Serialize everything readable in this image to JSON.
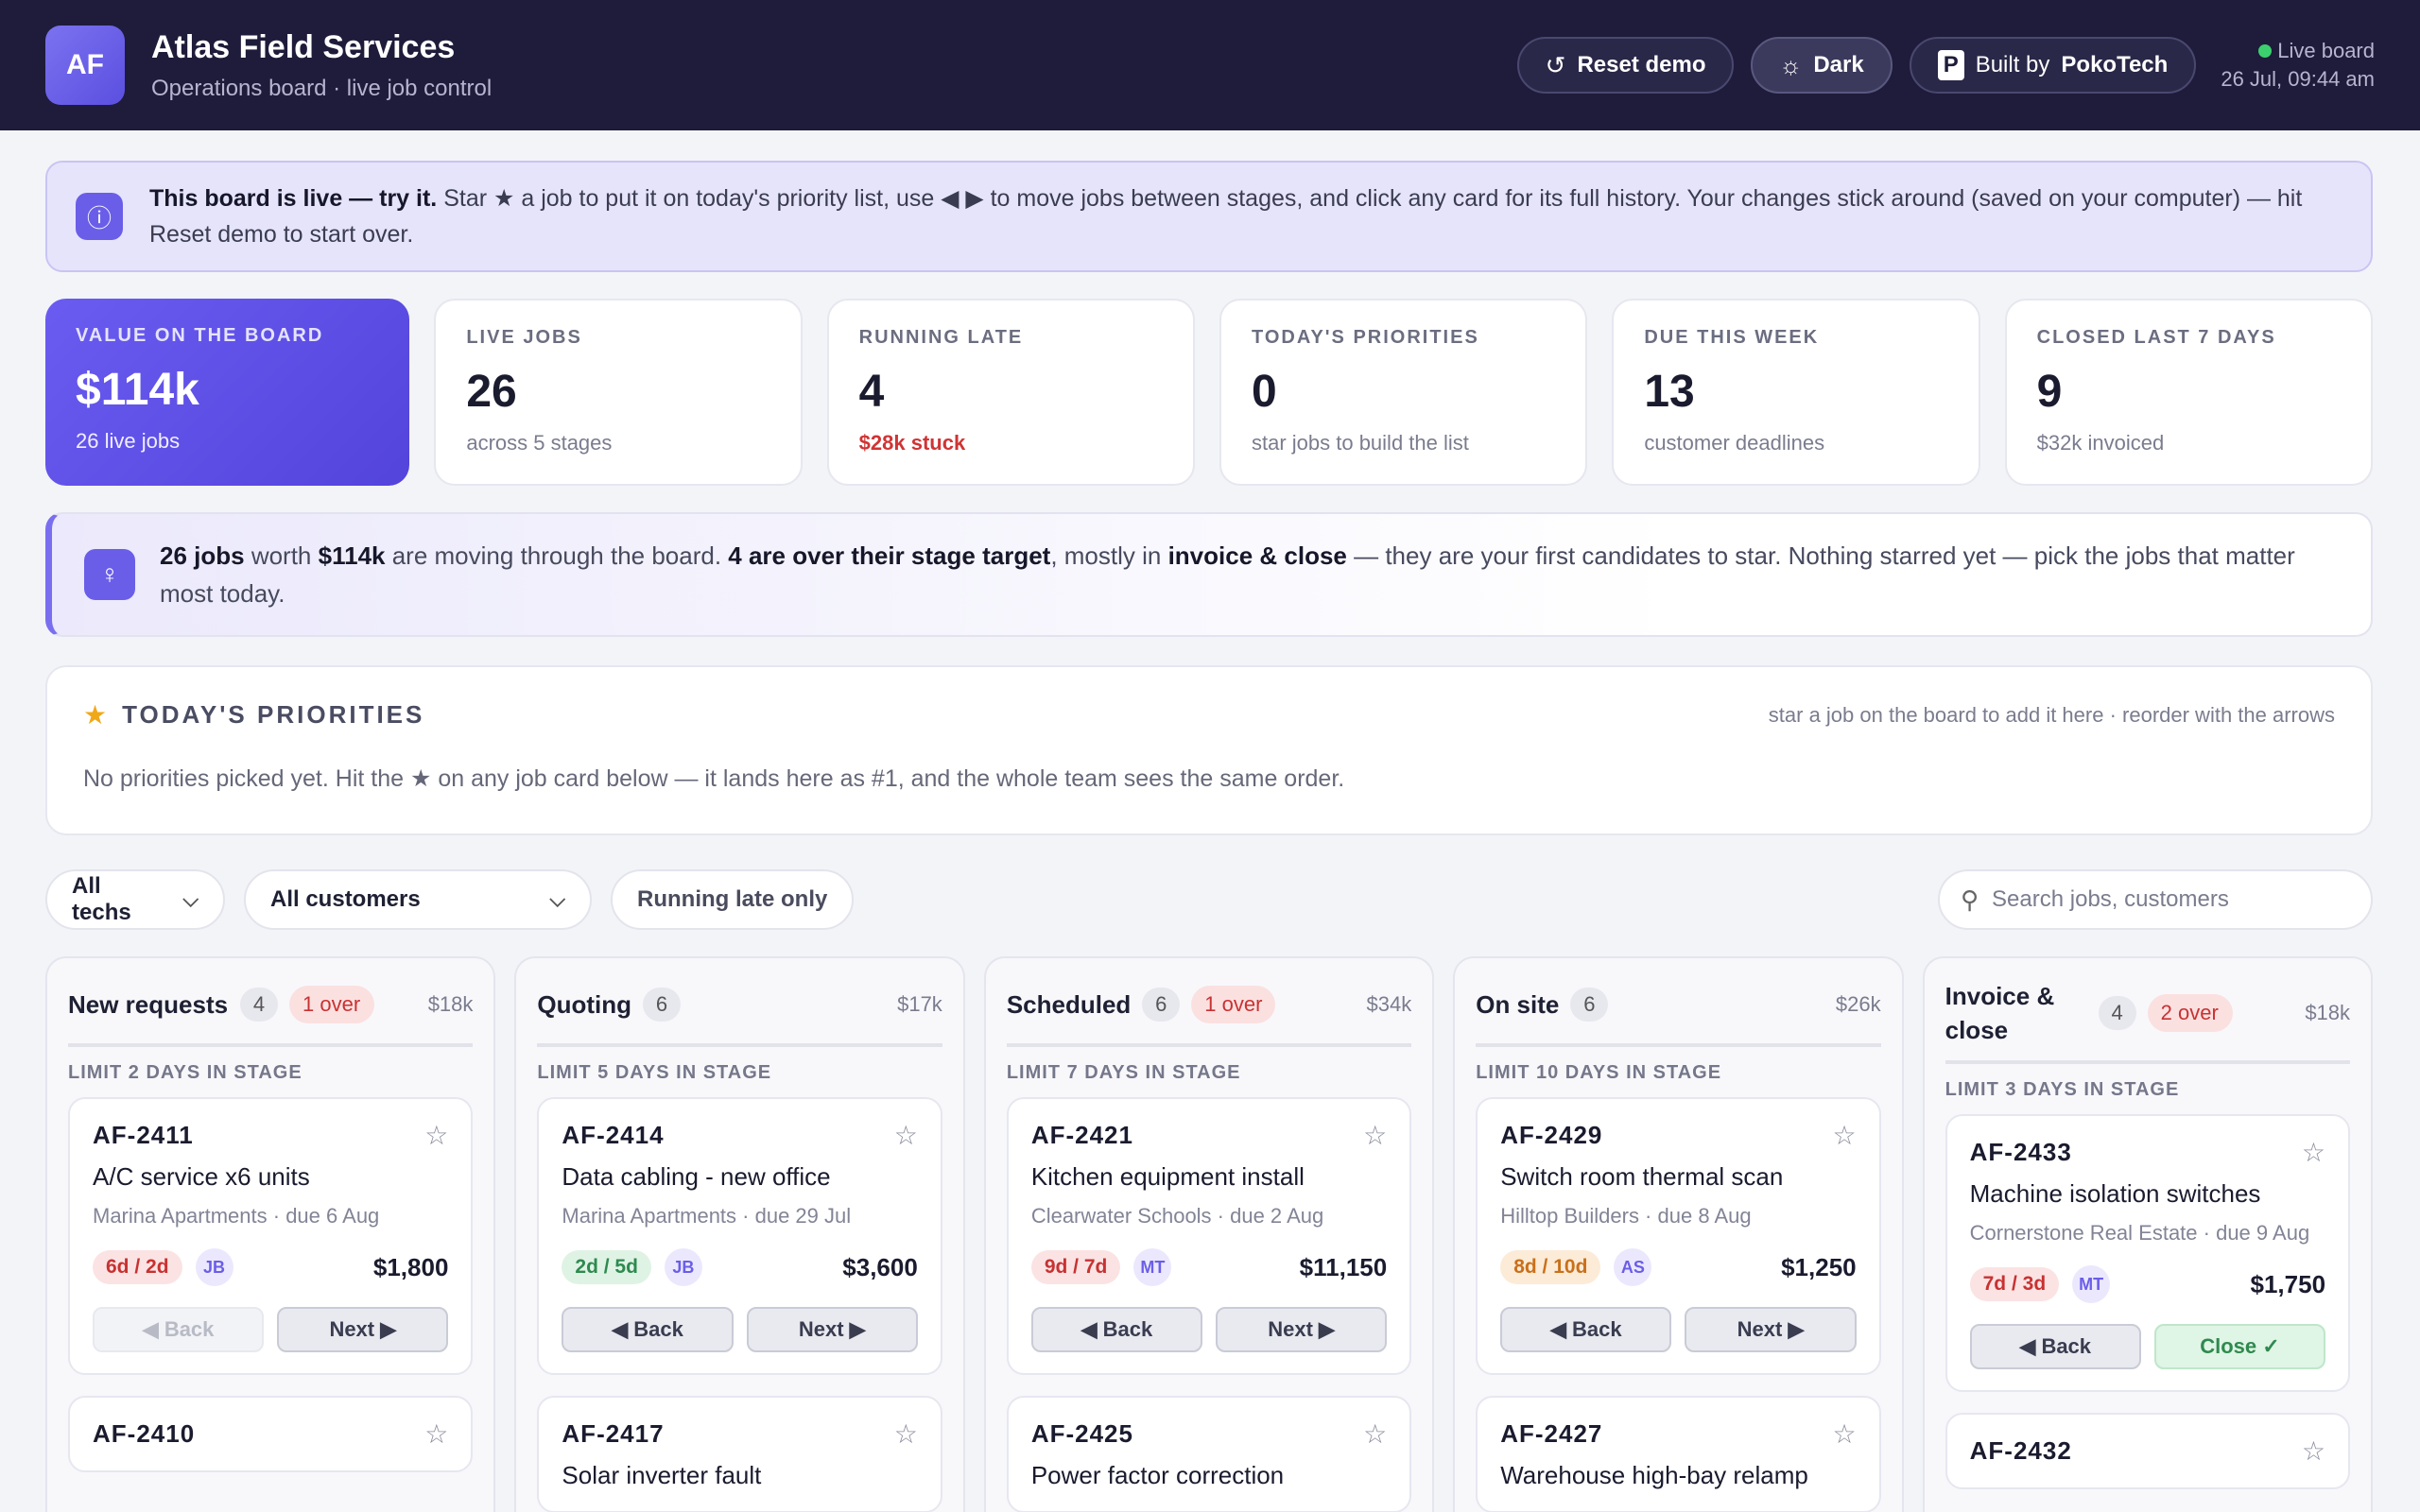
{
  "header": {
    "logo_text": "AF",
    "title": "Atlas Field Services",
    "subtitle": "Operations board · live job control",
    "reset_label": "Reset demo",
    "theme_label": "Dark",
    "built_prefix": "Built by",
    "built_brand": "PokoTech",
    "built_logo": "P",
    "live_label": "Live board",
    "timestamp": "26 Jul, 09:44 am"
  },
  "banner": {
    "lead": "This board is live — try it.",
    "text": " Star ★ a job to put it on today's priority list, use ◀ ▶ to move jobs between stages, and click any card for its full history. Your changes stick around (saved on your computer) — hit Reset demo to start over."
  },
  "kpis": [
    {
      "label": "VALUE ON THE BOARD",
      "value": "$114k",
      "sub": "26 live jobs"
    },
    {
      "label": "LIVE JOBS",
      "value": "26",
      "sub": "across 5 stages"
    },
    {
      "label": "RUNNING LATE",
      "value": "4",
      "sub": "$28k stuck"
    },
    {
      "label": "TODAY'S PRIORITIES",
      "value": "0",
      "sub": "star jobs to build the list"
    },
    {
      "label": "DUE THIS WEEK",
      "value": "13",
      "sub": "customer deadlines"
    },
    {
      "label": "CLOSED LAST 7 DAYS",
      "value": "9",
      "sub": "$32k invoiced"
    }
  ],
  "insight": {
    "p1": "26 jobs",
    "p2": " worth ",
    "p3": "$114k",
    "p4": " are moving through the board. ",
    "p5": "4 are over their stage target",
    "p6": ", mostly in ",
    "p7": "invoice & close",
    "p8": " — they are your first candidates to star. Nothing starred yet — pick the jobs that matter most today."
  },
  "priorities": {
    "title": "TODAY'S PRIORITIES",
    "hint": "star a job on the board to add it here · reorder with the arrows",
    "empty": "No priorities picked yet. Hit the ★ on any job card below — it lands here as #1, and the whole team sees the same order."
  },
  "filters": {
    "techs": "All techs",
    "customers": "All customers",
    "late": "Running late only",
    "search_placeholder": "Search jobs, customers"
  },
  "columns": [
    {
      "title": "New requests",
      "count": "4",
      "over": "1 over",
      "value": "$18k",
      "limit": "LIMIT 2 DAYS IN STAGE",
      "cards": [
        {
          "id": "AF-2411",
          "title": "A/C service x6 units",
          "meta": "Marina Apartments · due 6 Aug",
          "age": "6d / 2d",
          "tech": "JB",
          "amount": "$1,800",
          "back": "◀ Back",
          "next": "Next ▶"
        },
        {
          "id": "AF-2410"
        }
      ]
    },
    {
      "title": "Quoting",
      "count": "6",
      "over": "",
      "value": "$17k",
      "limit": "LIMIT 5 DAYS IN STAGE",
      "cards": [
        {
          "id": "AF-2414",
          "title": "Data cabling - new office",
          "meta": "Marina Apartments · due 29 Jul",
          "age": "2d / 5d",
          "tech": "JB",
          "amount": "$3,600",
          "back": "◀ Back",
          "next": "Next ▶"
        },
        {
          "id": "AF-2417",
          "title": "Solar inverter fault"
        }
      ]
    },
    {
      "title": "Scheduled",
      "count": "6",
      "over": "1 over",
      "value": "$34k",
      "limit": "LIMIT 7 DAYS IN STAGE",
      "cards": [
        {
          "id": "AF-2421",
          "title": "Kitchen equipment install",
          "meta": "Clearwater Schools · due 2 Aug",
          "age": "9d / 7d",
          "tech": "MT",
          "amount": "$11,150",
          "back": "◀ Back",
          "next": "Next ▶"
        },
        {
          "id": "AF-2425",
          "title": "Power factor correction"
        }
      ]
    },
    {
      "title": "On site",
      "count": "6",
      "over": "",
      "value": "$26k",
      "limit": "LIMIT 10 DAYS IN STAGE",
      "cards": [
        {
          "id": "AF-2429",
          "title": "Switch room thermal scan",
          "meta": "Hilltop Builders · due 8 Aug",
          "age": "8d / 10d",
          "tech": "AS",
          "amount": "$1,250",
          "back": "◀ Back",
          "next": "Next ▶"
        },
        {
          "id": "AF-2427",
          "title": "Warehouse high-bay relamp"
        }
      ]
    },
    {
      "title": "Invoice & close",
      "count": "4",
      "over": "2 over",
      "value": "$18k",
      "limit": "LIMIT 3 DAYS IN STAGE",
      "cards": [
        {
          "id": "AF-2433",
          "title": "Machine isolation switches",
          "meta": "Cornerstone Real Estate · due 9 Aug",
          "age": "7d / 3d",
          "tech": "MT",
          "amount": "$1,750",
          "back": "◀ Back",
          "next": "Close ✓"
        },
        {
          "id": "AF-2432"
        }
      ]
    }
  ]
}
